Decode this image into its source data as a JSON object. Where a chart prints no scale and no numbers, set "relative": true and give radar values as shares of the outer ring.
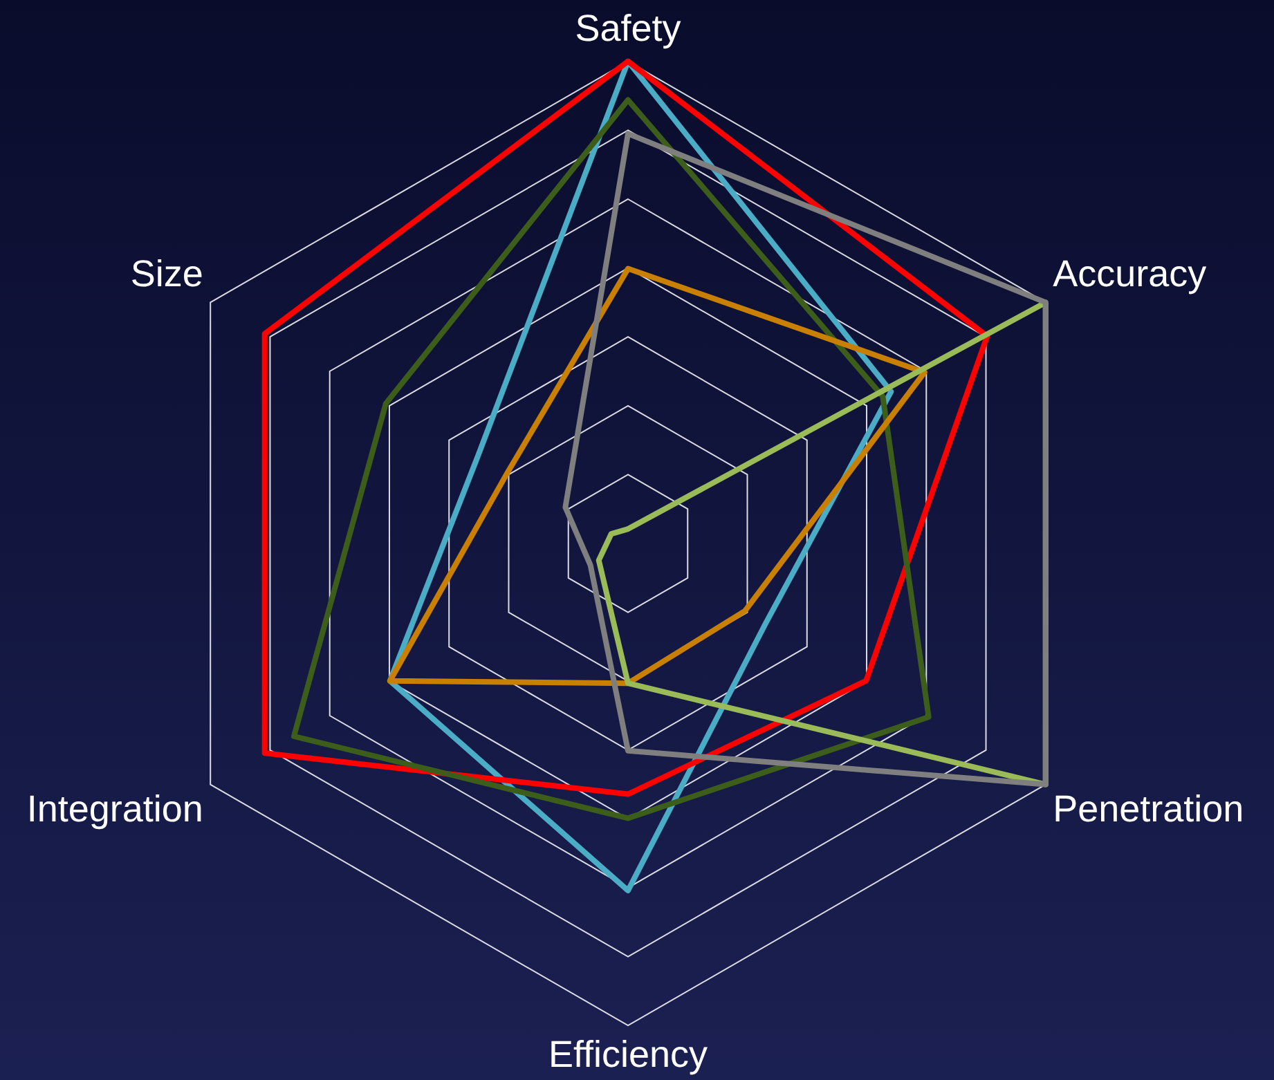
{
  "chart_data": {
    "type": "radar",
    "relative": true,
    "grid": true,
    "legend": false,
    "marker": "none",
    "line_style": "solid",
    "categories": [
      "Safety",
      "Accuracy",
      "Penetration",
      "Efficiency",
      "Integration",
      "Size"
    ],
    "series": [
      {
        "color": "#7f7f7f",
        "values": [
          0.85,
          1.0,
          1.0,
          0.43,
          0.09,
          0.15
        ]
      },
      {
        "color": "#9bbb59",
        "values": [
          0.03,
          1.0,
          1.0,
          0.29,
          0.07,
          0.04
        ]
      },
      {
        "color": "#c98000",
        "values": [
          0.57,
          0.71,
          0.28,
          0.29,
          0.57,
          0.29
        ]
      },
      {
        "color": "#3d5e1a",
        "values": [
          0.92,
          0.61,
          0.72,
          0.57,
          0.8,
          0.58
        ]
      },
      {
        "color": "#ff0000",
        "values": [
          1.0,
          0.86,
          0.57,
          0.52,
          0.87,
          0.87
        ]
      },
      {
        "color": "#4bacc6",
        "values": [
          1.0,
          0.63,
          0.33,
          0.72,
          0.57,
          0.36
        ]
      }
    ]
  }
}
